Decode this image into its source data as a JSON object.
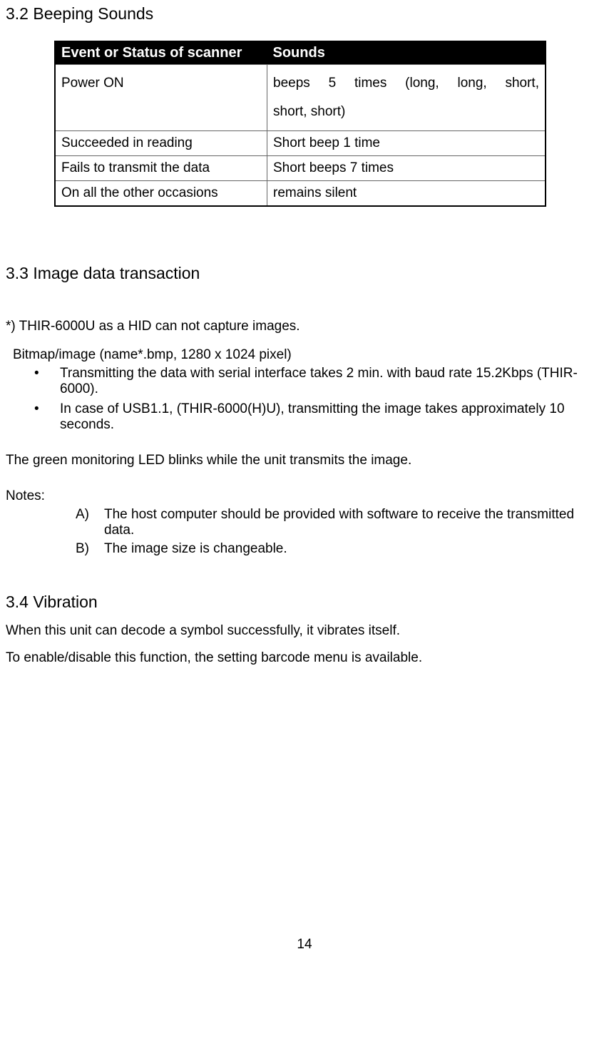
{
  "section32": {
    "heading": "3.2 Beeping Sounds",
    "table": {
      "headers": {
        "col1": "Event or Status of scanner",
        "col2": "Sounds"
      },
      "rows": [
        {
          "event": "Power ON",
          "sound_line1": "beeps 5 times        (long,    long,    short,",
          "sound_line2": "short, short)"
        },
        {
          "event": "Succeeded in reading",
          "sound": "Short beep 1 time"
        },
        {
          "event": "Fails to transmit the data",
          "sound": "Short beeps 7 times"
        },
        {
          "event": "On all the other occasions",
          "sound": "remains silent"
        }
      ]
    }
  },
  "section33": {
    "heading": "3.3 Image data transaction",
    "note_star": "*) THIR-6000U as a HID can not capture images.",
    "bitmap": "Bitmap/image (name*.bmp, 1280 x 1024 pixel)",
    "bullets": [
      "Transmitting the data with serial interface takes 2 min. with baud rate 15.2Kbps (THIR-6000).",
      "In case of USB1.1, (THIR-6000(H)U), transmitting the image takes approximately 10 seconds."
    ],
    "led_line": "The green monitoring LED blinks while the unit transmits the image.",
    "notes_label": "Notes:",
    "notes": [
      {
        "letter": "A)",
        "text": "The host computer should be provided with software to receive the transmitted data."
      },
      {
        "letter": "B)",
        "text": "The image size is changeable."
      }
    ]
  },
  "section34": {
    "heading": "3.4 Vibration",
    "line1": "When this unit can decode a symbol successfully, it vibrates itself.",
    "line2": "To enable/disable this function, the setting barcode menu is available."
  },
  "page_number": "14"
}
